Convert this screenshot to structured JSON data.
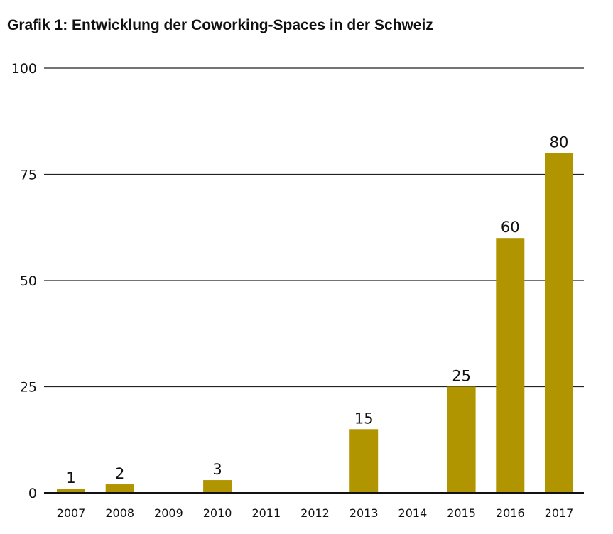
{
  "chart_data": {
    "type": "bar",
    "title": "Grafik 1: Entwicklung der Coworking-Spaces in der Schweiz",
    "xlabel": "",
    "ylabel": "",
    "ylim": [
      0,
      100
    ],
    "yticks": [
      0,
      25,
      50,
      75,
      100
    ],
    "grid": true,
    "categories": [
      "2007",
      "2008",
      "2009",
      "2010",
      "2011",
      "2012",
      "2013",
      "2014",
      "2015",
      "2016",
      "2017"
    ],
    "values": [
      1,
      2,
      null,
      3,
      null,
      null,
      15,
      null,
      25,
      60,
      80
    ],
    "data_labels": [
      "1",
      "2",
      "",
      "3",
      "",
      "",
      "15",
      "",
      "25",
      "60",
      "80"
    ],
    "bar_color": "#b09500"
  }
}
